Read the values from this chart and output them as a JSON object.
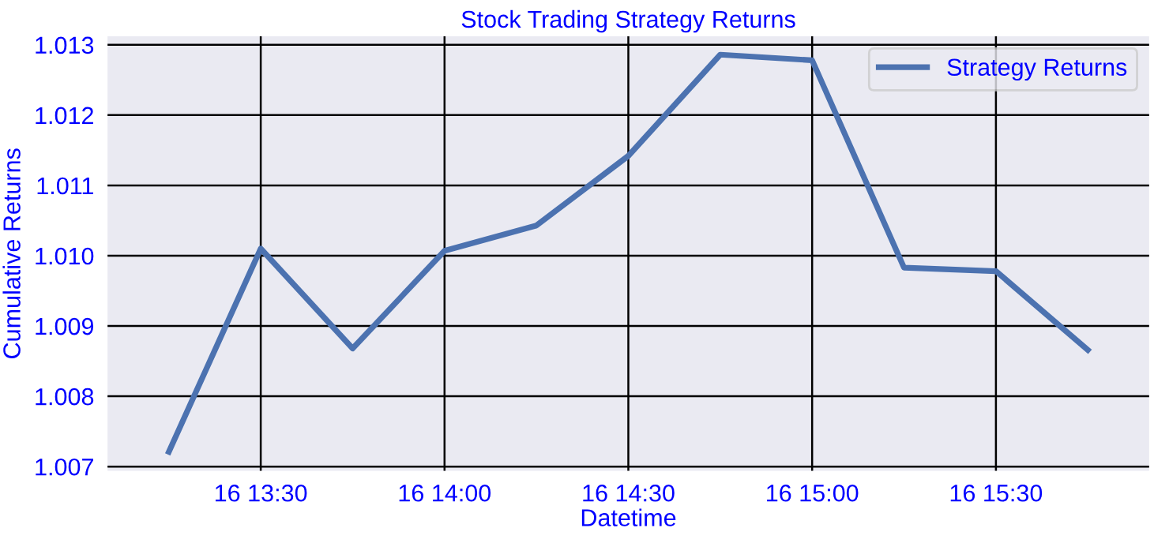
{
  "chart_data": {
    "type": "line",
    "title": "Stock Trading Strategy Returns",
    "xlabel": "Datetime",
    "ylabel": "Cumulative Returns",
    "categories": [
      null,
      "16 13:30",
      null,
      "16 14:00",
      null,
      "16 14:30",
      null,
      "16 15:00",
      null,
      "16 15:30",
      null
    ],
    "series": [
      {
        "name": "Strategy Returns",
        "color": "#4c72b0",
        "values": [
          1.00721,
          1.0101,
          1.00868,
          1.01007,
          1.01043,
          1.01142,
          1.01286,
          1.01278,
          1.00983,
          1.00978,
          1.00866
        ]
      }
    ],
    "ylim": [
      1.00694,
      1.01312
    ],
    "yticks": [
      {
        "value": 1.007,
        "label": "1.007"
      },
      {
        "value": 1.008,
        "label": "1.008"
      },
      {
        "value": 1.009,
        "label": "1.009"
      },
      {
        "value": 1.01,
        "label": "1.010"
      },
      {
        "value": 1.011,
        "label": "1.011"
      },
      {
        "value": 1.012,
        "label": "1.012"
      },
      {
        "value": 1.013,
        "label": "1.013"
      }
    ],
    "grid": true,
    "legend": "top right",
    "marker": "none",
    "line_style": "solid"
  }
}
